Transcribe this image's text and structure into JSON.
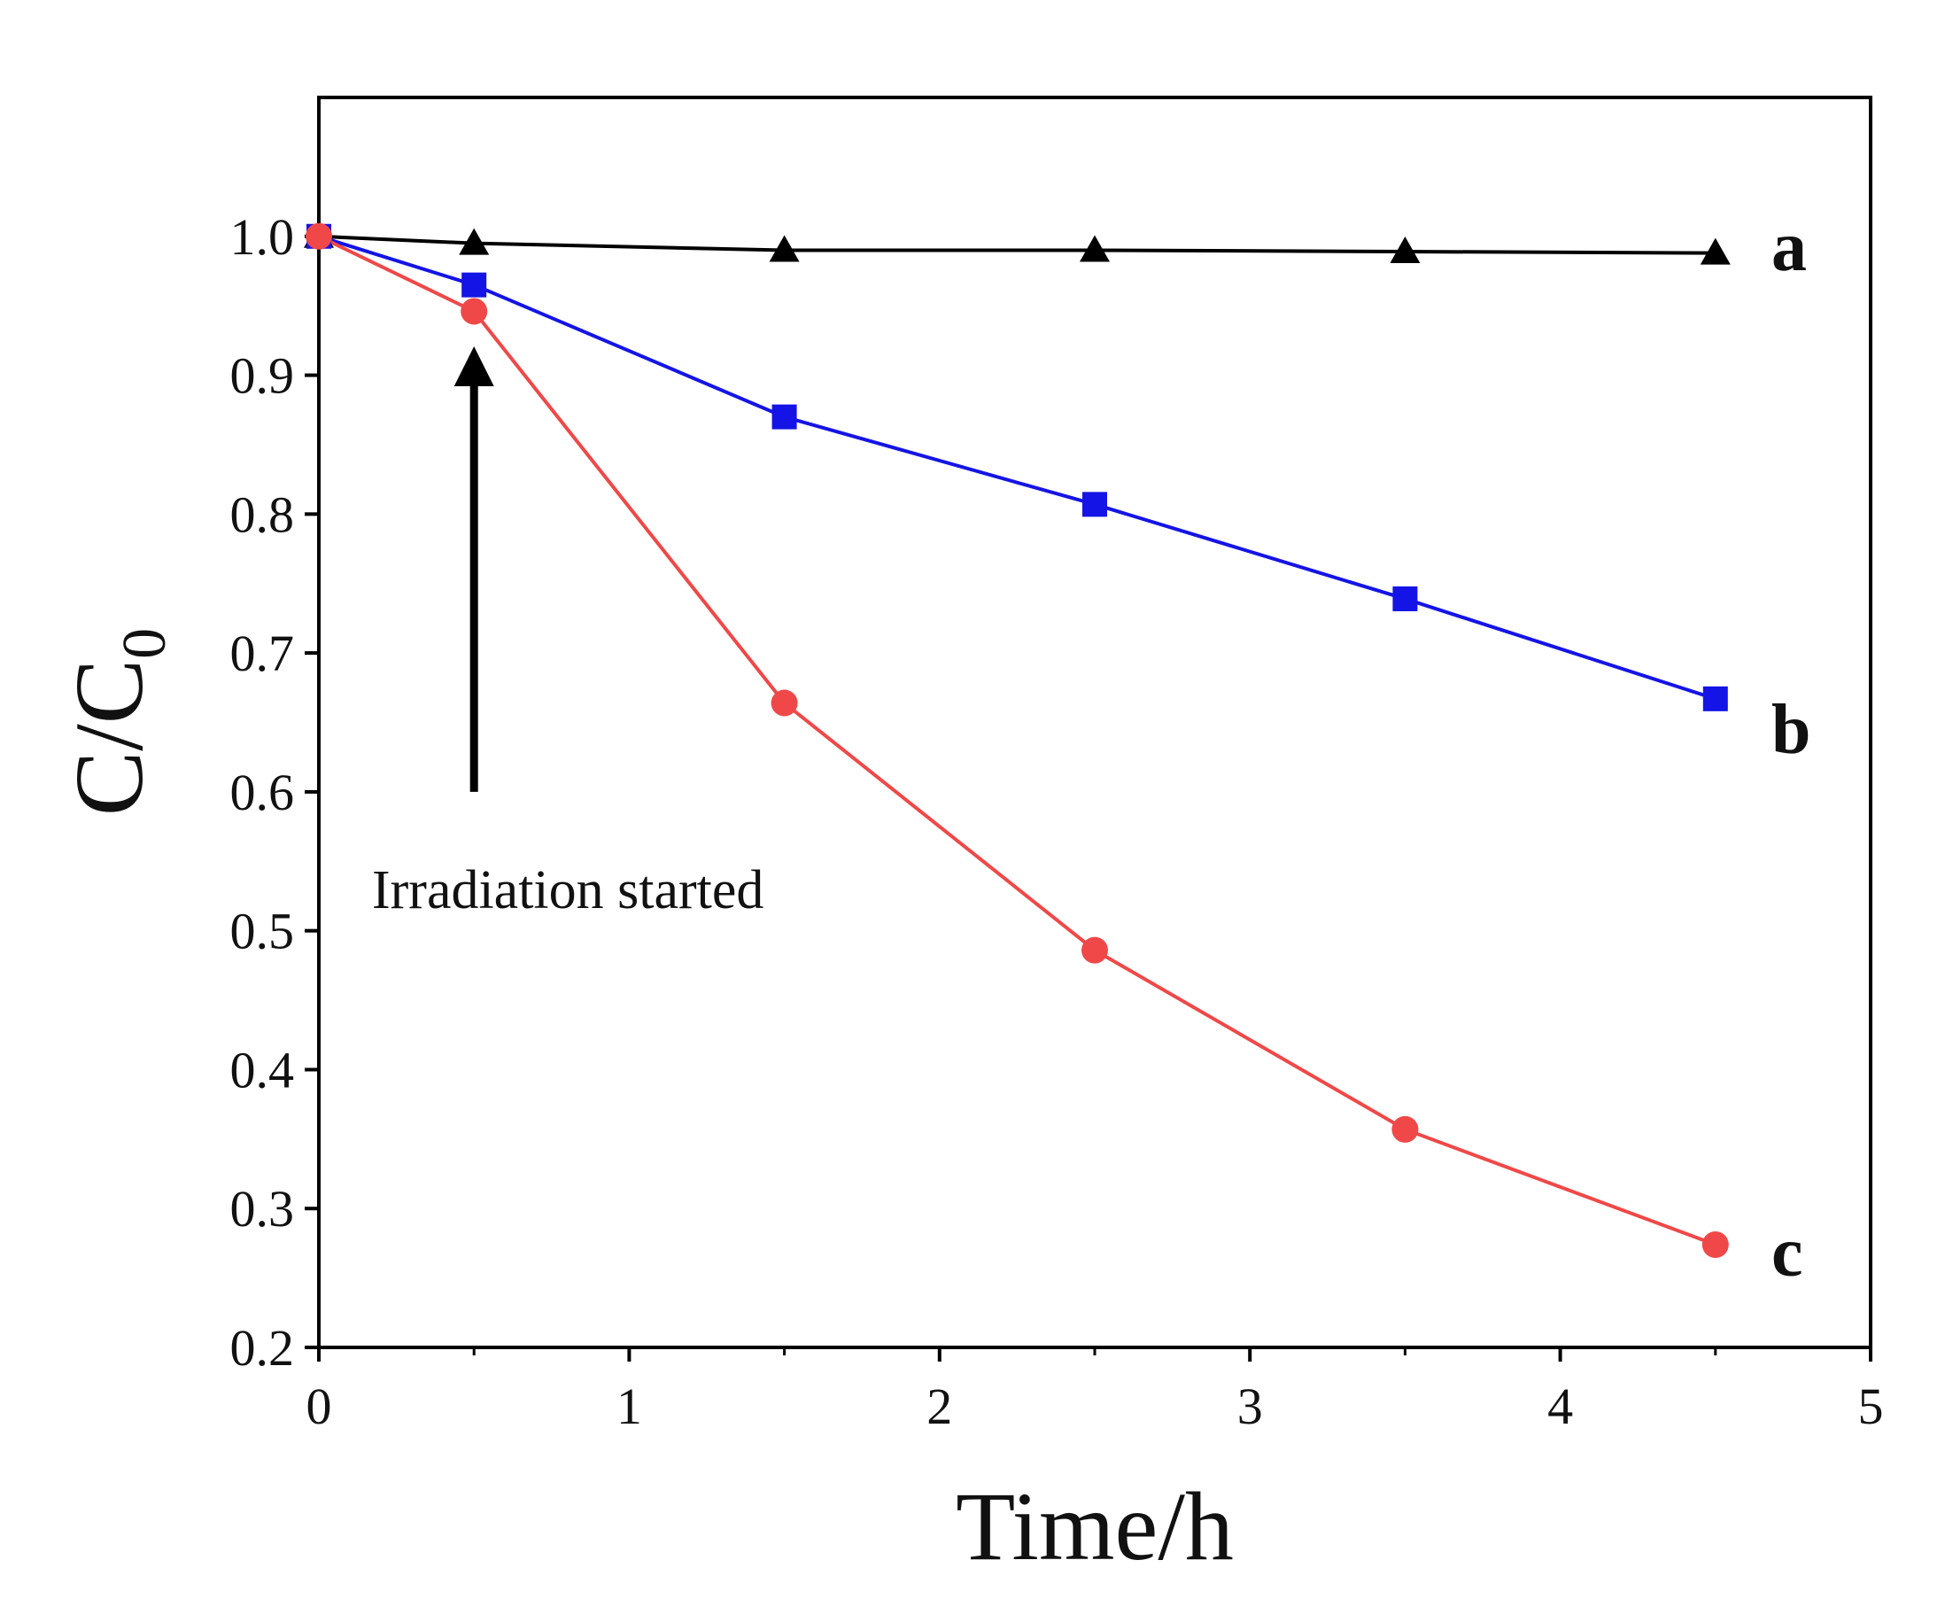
{
  "chart_data": {
    "type": "line",
    "title": "",
    "xlabel": "Time/h",
    "ylabel": {
      "main": "C/C",
      "subscript": "0"
    },
    "xlim": [
      0,
      5
    ],
    "ylim": [
      0.2,
      1.1
    ],
    "xticks": [
      0,
      1,
      2,
      3,
      4,
      5
    ],
    "xtick_labels": [
      "0",
      "1",
      "2",
      "3",
      "4",
      "5"
    ],
    "yticks": [
      0.2,
      0.3,
      0.4,
      0.5,
      0.6,
      0.7,
      0.8,
      0.9,
      1.0
    ],
    "ytick_labels": [
      "0.2",
      "0.3",
      "0.4",
      "0.5",
      "0.6",
      "0.7",
      "0.8",
      "0.9",
      "1.0"
    ],
    "grid": false,
    "x": [
      0,
      0.5,
      1.5,
      2.5,
      3.5,
      4.5
    ],
    "series": [
      {
        "name": "a",
        "color": "#000000",
        "marker": "triangle",
        "values": [
          1.0,
          0.995,
          0.99,
          0.99,
          0.989,
          0.988
        ]
      },
      {
        "name": "b",
        "color": "#1414e6",
        "marker": "square",
        "values": [
          1.0,
          0.965,
          0.87,
          0.807,
          0.739,
          0.667
        ]
      },
      {
        "name": "c",
        "color": "#f04848",
        "marker": "circle",
        "values": [
          1.0,
          0.946,
          0.664,
          0.486,
          0.357,
          0.274
        ]
      }
    ],
    "annotations": [
      {
        "text": "Irradiation started",
        "arrow_x": 0.5,
        "arrow_from_y": 0.6,
        "arrow_to_y": 0.915
      }
    ]
  }
}
